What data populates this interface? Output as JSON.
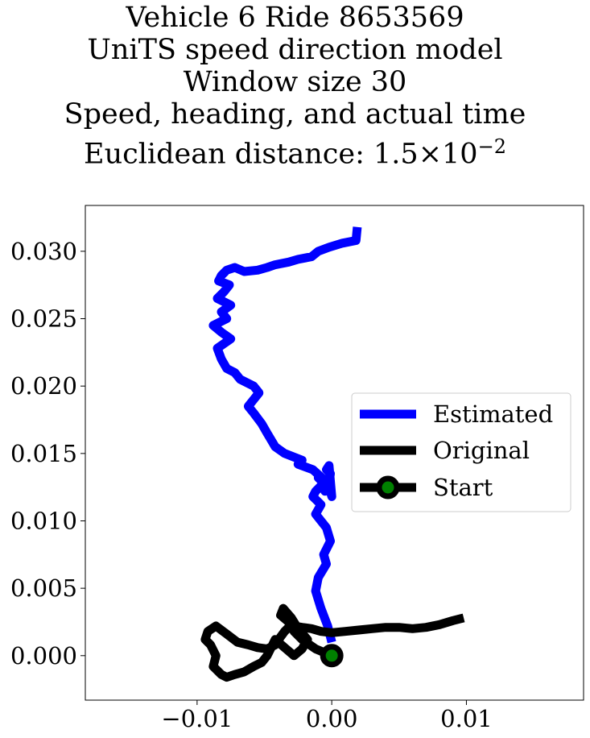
{
  "chart_data": {
    "type": "line",
    "title_lines": [
      "Vehicle 6 Ride 8653569",
      "UniTS speed direction model",
      "Window size 30",
      "Speed, heading, and actual time"
    ],
    "title_distance_prefix": "Euclidean distance: ",
    "title_distance_mantissa": "1.5",
    "title_distance_times": "×",
    "title_distance_base": "10",
    "title_distance_exponent": "−2",
    "xlabel": "",
    "ylabel": "",
    "xlim": [
      -0.0183,
      0.0187
    ],
    "ylim": [
      -0.0033,
      0.0334
    ],
    "x_ticks": [
      -0.01,
      0.0,
      0.01
    ],
    "x_tick_labels": [
      "−0.01",
      "0.00",
      "0.01"
    ],
    "y_ticks": [
      0.0,
      0.005,
      0.01,
      0.015,
      0.02,
      0.025,
      0.03
    ],
    "y_tick_labels": [
      "0.000",
      "0.005",
      "0.010",
      "0.015",
      "0.020",
      "0.025",
      "0.030"
    ],
    "grid": false,
    "legend_position": "center-right",
    "series": [
      {
        "name": "Estimated",
        "color": "#0000ff",
        "x": [
          0.0,
          -0.0003,
          -0.0008,
          -0.0012,
          -0.001,
          -0.0004,
          -0.0006,
          -0.0001,
          -0.0004,
          -0.0012,
          -0.0008,
          -0.0014,
          -0.0012,
          -0.0006,
          -0.001,
          -0.0004,
          -0.0002,
          -0.0005,
          -0.0002,
          -0.0001,
          -0.0004,
          -0.0002,
          0.0,
          -0.0002,
          -0.0003,
          -0.0014,
          -0.0025,
          -0.0022,
          -0.0035,
          -0.0042,
          -0.0045,
          -0.0048,
          -0.0052,
          -0.0058,
          -0.0062,
          -0.0054,
          -0.0058,
          -0.0068,
          -0.0072,
          -0.0078,
          -0.0082,
          -0.0085,
          -0.0075,
          -0.0082,
          -0.0088,
          -0.0078,
          -0.0082,
          -0.0075,
          -0.0085,
          -0.008,
          -0.0076,
          -0.0084,
          -0.0082,
          -0.0078,
          -0.0072,
          -0.0065,
          -0.0055,
          -0.0048,
          -0.0042,
          -0.0032,
          -0.0025,
          -0.0015,
          -0.001,
          -0.0002,
          0.0008,
          0.0018,
          0.0019
        ],
        "y": [
          0.001,
          0.0022,
          0.0035,
          0.0048,
          0.0058,
          0.0068,
          0.0075,
          0.0085,
          0.0095,
          0.0105,
          0.0112,
          0.0118,
          0.0122,
          0.0128,
          0.0132,
          0.0128,
          0.0125,
          0.0122,
          0.0128,
          0.0135,
          0.0138,
          0.0141,
          0.0118,
          0.0125,
          0.0128,
          0.0138,
          0.0142,
          0.0145,
          0.015,
          0.0155,
          0.016,
          0.0165,
          0.0172,
          0.018,
          0.0185,
          0.0195,
          0.02,
          0.0205,
          0.021,
          0.0213,
          0.022,
          0.0228,
          0.0235,
          0.024,
          0.0245,
          0.025,
          0.0255,
          0.026,
          0.0265,
          0.027,
          0.0275,
          0.0278,
          0.0282,
          0.0286,
          0.0288,
          0.0285,
          0.0286,
          0.0288,
          0.029,
          0.0292,
          0.0294,
          0.0296,
          0.03,
          0.0303,
          0.0306,
          0.0308,
          0.0318
        ]
      },
      {
        "name": "Original",
        "color": "#000000",
        "x": [
          0.0,
          -0.0012,
          -0.0022,
          -0.0028,
          -0.0032,
          -0.0038,
          -0.0036,
          -0.003,
          -0.0025,
          -0.0018,
          -0.0022,
          -0.0028,
          -0.0035,
          -0.0042,
          -0.0045,
          -0.0048,
          -0.0052,
          -0.0058,
          -0.0065,
          -0.0072,
          -0.0078,
          -0.0082,
          -0.0088,
          -0.0086,
          -0.009,
          -0.0094,
          -0.0092,
          -0.0086,
          -0.0078,
          -0.007,
          -0.0062,
          -0.0055,
          -0.0048,
          -0.0042,
          -0.0038,
          -0.0035,
          -0.0032,
          -0.0028,
          -0.0022,
          -0.0015,
          -0.0008,
          0.0,
          0.001,
          0.002,
          0.003,
          0.004,
          0.005,
          0.006,
          0.007,
          0.008,
          0.009,
          0.0098
        ],
        "y": [
          0.0,
          0.0005,
          0.0012,
          0.0018,
          0.0025,
          0.003,
          0.0035,
          0.0028,
          0.002,
          0.0012,
          0.0005,
          0.0,
          0.0006,
          0.0012,
          0.0006,
          0.0,
          -0.0005,
          -0.0008,
          -0.0012,
          -0.0014,
          -0.0016,
          -0.0014,
          -0.0008,
          0.0,
          0.0008,
          0.0012,
          0.0018,
          0.0022,
          0.0016,
          0.001,
          0.0008,
          0.0006,
          0.0005,
          0.0008,
          0.0014,
          0.0018,
          0.0021,
          0.0022,
          0.0021,
          0.002,
          0.0018,
          0.0017,
          0.0018,
          0.0019,
          0.002,
          0.0021,
          0.0021,
          0.002,
          0.0021,
          0.0023,
          0.0026,
          0.0028
        ]
      }
    ],
    "start_point": {
      "name": "Start",
      "x": 0.0,
      "y": 0.0,
      "color": "#000000",
      "fill_color": "#008000"
    },
    "legend_labels": [
      "Estimated",
      "Original",
      "Start"
    ]
  }
}
